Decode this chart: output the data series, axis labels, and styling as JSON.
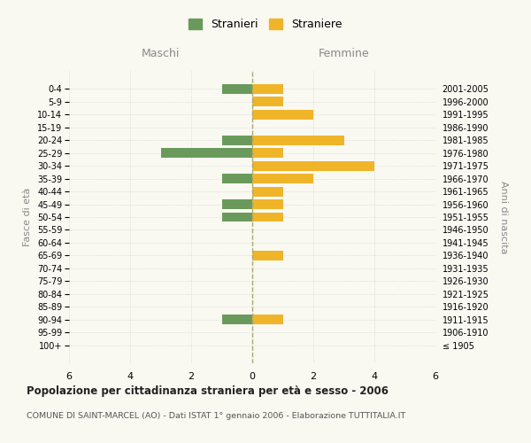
{
  "age_groups": [
    "100+",
    "95-99",
    "90-94",
    "85-89",
    "80-84",
    "75-79",
    "70-74",
    "65-69",
    "60-64",
    "55-59",
    "50-54",
    "45-49",
    "40-44",
    "35-39",
    "30-34",
    "25-29",
    "20-24",
    "15-19",
    "10-14",
    "5-9",
    "0-4"
  ],
  "birth_years": [
    "≤ 1905",
    "1906-1910",
    "1911-1915",
    "1916-1920",
    "1921-1925",
    "1926-1930",
    "1931-1935",
    "1936-1940",
    "1941-1945",
    "1946-1950",
    "1951-1955",
    "1956-1960",
    "1961-1965",
    "1966-1970",
    "1971-1975",
    "1976-1980",
    "1981-1985",
    "1986-1990",
    "1991-1995",
    "1996-2000",
    "2001-2005"
  ],
  "maschi": [
    0,
    0,
    1,
    0,
    0,
    0,
    0,
    0,
    0,
    0,
    1,
    1,
    0,
    1,
    0,
    3,
    1,
    0,
    0,
    0,
    1
  ],
  "femmine": [
    0,
    0,
    1,
    0,
    0,
    0,
    0,
    1,
    0,
    0,
    1,
    1,
    1,
    2,
    4,
    1,
    3,
    0,
    2,
    1,
    1
  ],
  "color_maschi": "#6a9a5b",
  "color_femmine": "#f0b429",
  "xlim": 6,
  "title": "Popolazione per cittadinanza straniera per età e sesso - 2006",
  "subtitle": "COMUNE DI SAINT-MARCEL (AO) - Dati ISTAT 1° gennaio 2006 - Elaborazione TUTTITALIA.IT",
  "legend_maschi": "Stranieri",
  "legend_femmine": "Straniere",
  "xlabel_left": "Maschi",
  "xlabel_right": "Femmine",
  "ylabel_left": "Fasce di età",
  "ylabel_right": "Anni di nascita",
  "bg_color": "#f9f9f2",
  "bar_height": 0.75
}
